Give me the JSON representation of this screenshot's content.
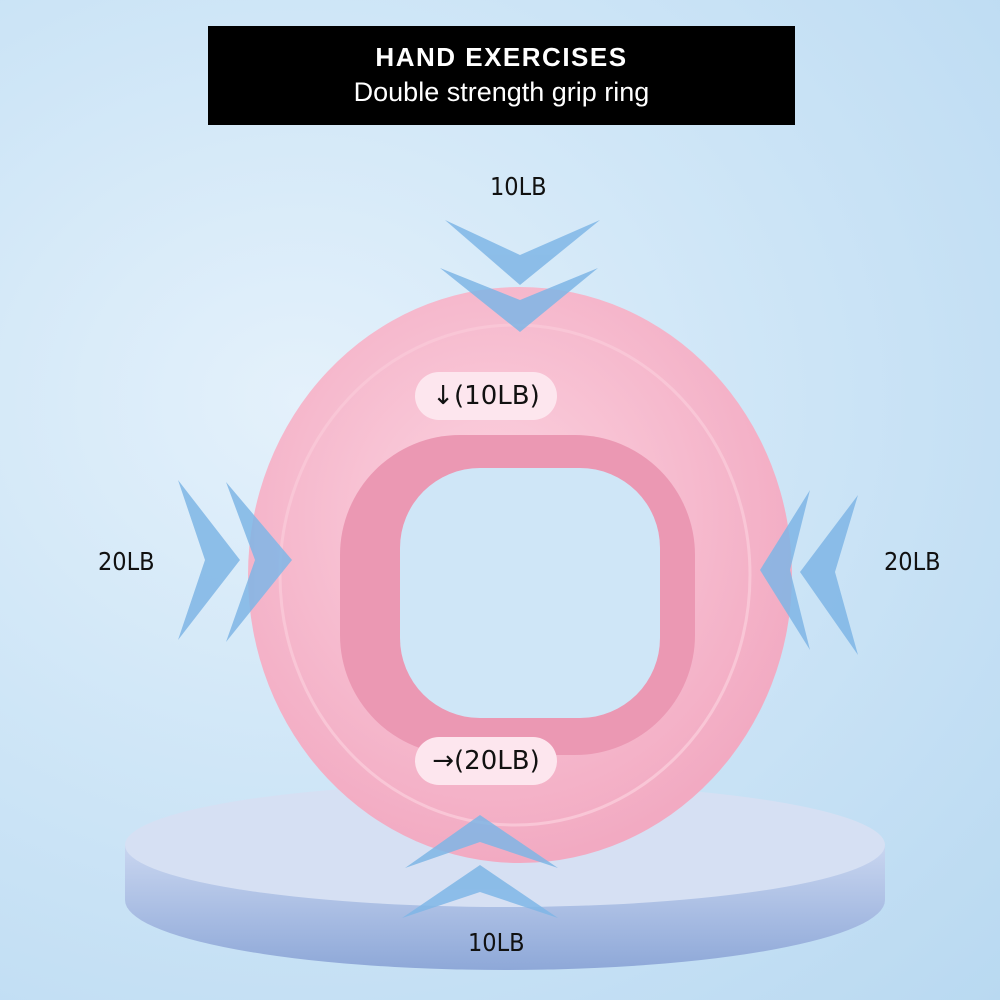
{
  "banner": {
    "title": "HAND EXERCISES",
    "subtitle": "Double strength grip ring"
  },
  "labels": {
    "top": "10LB",
    "bottom": "10LB",
    "left": "20LB",
    "right": "20LB"
  },
  "ring": {
    "upper_marker": "↓(10LB)",
    "lower_marker": "→(20LB)",
    "color": "#f7b8cc"
  },
  "colors": {
    "arrows": "#7fb6e6",
    "pedestal": "#a9bde3"
  }
}
